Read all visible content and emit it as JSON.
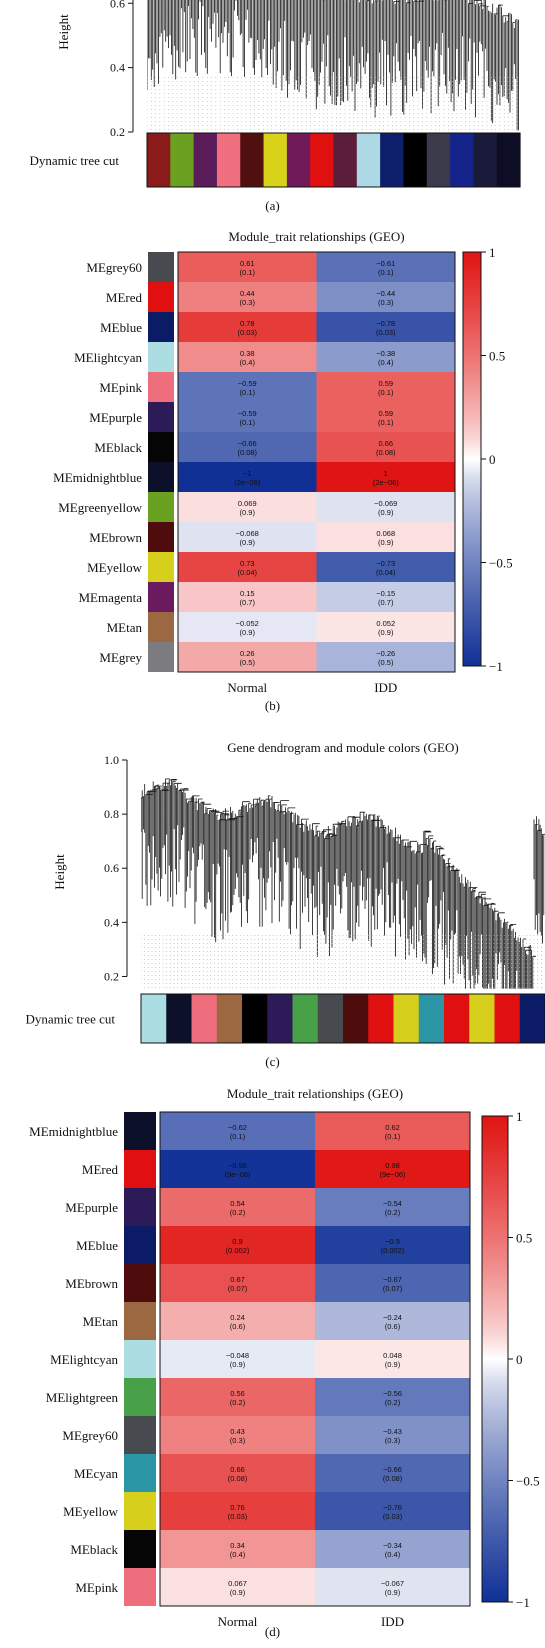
{
  "panel_labels": [
    "(a)",
    "(b)",
    "(c)",
    "(d)"
  ],
  "chart_data": [
    {
      "type": "dendrogram",
      "panel": "(a)",
      "title": "",
      "ylabel": "Height",
      "ylim": [
        0.2,
        0.75
      ],
      "yticks": [
        "0.2",
        "0.4",
        "0.6"
      ],
      "color_bar_label": "Dynamic tree cut",
      "module_colors": [
        "#8B1A1A",
        "#6aa120",
        "#5a1d5a",
        "#f07080",
        "#501010",
        "#d8d21a",
        "#701a5a",
        "#e01010",
        "#5a1d3a",
        "#add8e6",
        "#0d1f6a",
        "#000000",
        "#3a3a4a",
        "#14248a",
        "#1a1a3a",
        "#0d0d25"
      ],
      "grid": false
    },
    {
      "type": "heatmap",
      "panel": "(b)",
      "title": "Module_trait relationships (GEO)",
      "columns": [
        "Normal",
        "IDD"
      ],
      "rows": [
        {
          "label": "MEgrey60",
          "color": "#474a4f",
          "cells": [
            {
              "r": "0.61",
              "p": "(0.1)",
              "v": 0.61
            },
            {
              "r": "−0.61",
              "p": "(0.1)",
              "v": -0.61
            }
          ]
        },
        {
          "label": "MEred",
          "color": "#e01010",
          "cells": [
            {
              "r": "0.44",
              "p": "(0.3)",
              "v": 0.44
            },
            {
              "r": "−0.44",
              "p": "(0.3)",
              "v": -0.44
            }
          ]
        },
        {
          "label": "MEblue",
          "color": "#0c1b66",
          "cells": [
            {
              "r": "0.78",
              "p": "(0.03)",
              "v": 0.78
            },
            {
              "r": "−0.78",
              "p": "(0.03)",
              "v": -0.78
            }
          ]
        },
        {
          "label": "MElightcyan",
          "color": "#abdde3",
          "cells": [
            {
              "r": "0.38",
              "p": "(0.4)",
              "v": 0.38
            },
            {
              "r": "−0.38",
              "p": "(0.4)",
              "v": -0.38
            }
          ]
        },
        {
          "label": "MEpink",
          "color": "#ef6e7e",
          "cells": [
            {
              "r": "−0.59",
              "p": "(0.1)",
              "v": -0.59
            },
            {
              "r": "0.59",
              "p": "(0.1)",
              "v": 0.59
            }
          ]
        },
        {
          "label": "MEpurple",
          "color": "#2d1a58",
          "cells": [
            {
              "r": "−0.59",
              "p": "(0.1)",
              "v": -0.59
            },
            {
              "r": "0.59",
              "p": "(0.1)",
              "v": 0.59
            }
          ]
        },
        {
          "label": "MEblack",
          "color": "#050505",
          "cells": [
            {
              "r": "−0.66",
              "p": "(0.08)",
              "v": -0.66
            },
            {
              "r": "0.66",
              "p": "(0.08)",
              "v": 0.66
            }
          ]
        },
        {
          "label": "MEmidnightblue",
          "color": "#0c1028",
          "cells": [
            {
              "r": "−1",
              "p": "(2e−06)",
              "v": -1
            },
            {
              "r": "1",
              "p": "(2e−06)",
              "v": 1
            }
          ]
        },
        {
          "label": "MEgreenyellow",
          "color": "#6aa120",
          "cells": [
            {
              "r": "0.069",
              "p": "(0.9)",
              "v": 0.069
            },
            {
              "r": "−0.069",
              "p": "(0.9)",
              "v": -0.069
            }
          ]
        },
        {
          "label": "MEbrown",
          "color": "#4e0c0c",
          "cells": [
            {
              "r": "−0.068",
              "p": "(0.9)",
              "v": -0.068
            },
            {
              "r": "0.068",
              "p": "(0.9)",
              "v": 0.068
            }
          ]
        },
        {
          "label": "MEyellow",
          "color": "#d6d01c",
          "cells": [
            {
              "r": "0.73",
              "p": "(0.04)",
              "v": 0.73
            },
            {
              "r": "−0.73",
              "p": "(0.04)",
              "v": -0.73
            }
          ]
        },
        {
          "label": "MEmagenta",
          "color": "#6b1a60",
          "cells": [
            {
              "r": "0.15",
              "p": "(0.7)",
              "v": 0.15
            },
            {
              "r": "−0.15",
              "p": "(0.7)",
              "v": -0.15
            }
          ]
        },
        {
          "label": "MEtan",
          "color": "#9b6842",
          "cells": [
            {
              "r": "−0.052",
              "p": "(0.9)",
              "v": -0.052
            },
            {
              "r": "0.052",
              "p": "(0.9)",
              "v": 0.052
            }
          ]
        },
        {
          "label": "MEgrey",
          "color": "#7c7c80",
          "cells": [
            {
              "r": "0.26",
              "p": "(0.5)",
              "v": 0.26
            },
            {
              "r": "−0.26",
              "p": "(0.5)",
              "v": -0.26
            }
          ]
        }
      ],
      "colorscale": {
        "min": -1,
        "max": 1,
        "ticks": [
          "1",
          "0.5",
          "0",
          "−0.5",
          "−1"
        ],
        "tick_values": [
          1,
          0.5,
          0,
          -0.5,
          -1
        ]
      }
    },
    {
      "type": "dendrogram",
      "panel": "(c)",
      "title": "Gene dendrogram and module colors (GEO)",
      "ylabel": "Height",
      "ylim": [
        0.15,
        1.0
      ],
      "yticks": [
        "0.2",
        "0.4",
        "0.6",
        "0.8",
        "1.0"
      ],
      "color_bar_label": "Dynamic tree cut",
      "module_colors": [
        "#abdde3",
        "#0c1028",
        "#ef6e7e",
        "#9b6842",
        "#000000",
        "#2d1a58",
        "#48a048",
        "#474a4f",
        "#4e0c0c",
        "#e01010",
        "#d6d01c",
        "#2a96a6",
        "#e01010",
        "#d6d01c",
        "#e01010",
        "#0c1b66"
      ],
      "grid": false
    },
    {
      "type": "heatmap",
      "panel": "(d)",
      "title": "Module_trait relationships (GEO)",
      "columns": [
        "Normal",
        "IDD"
      ],
      "rows": [
        {
          "label": "MEmidnightblue",
          "color": "#0c1028",
          "cells": [
            {
              "r": "−0.62",
              "p": "(0.1)",
              "v": -0.62
            },
            {
              "r": "0.62",
              "p": "(0.1)",
              "v": 0.62
            }
          ]
        },
        {
          "label": "MEred",
          "color": "#e01010",
          "cells": [
            {
              "r": "−0.98",
              "p": "(9e−06)",
              "v": -0.98
            },
            {
              "r": "0.98",
              "p": "(9e−06)",
              "v": 0.98
            }
          ]
        },
        {
          "label": "MEpurple",
          "color": "#2d1a58",
          "cells": [
            {
              "r": "0.54",
              "p": "(0.2)",
              "v": 0.54
            },
            {
              "r": "−0.54",
              "p": "(0.2)",
              "v": -0.54
            }
          ]
        },
        {
          "label": "MEblue",
          "color": "#0c1b66",
          "cells": [
            {
              "r": "0.9",
              "p": "(0.002)",
              "v": 0.9
            },
            {
              "r": "−0.9",
              "p": "(0.002)",
              "v": -0.9
            }
          ]
        },
        {
          "label": "MEbrown",
          "color": "#4e0c0c",
          "cells": [
            {
              "r": "0.67",
              "p": "(0.07)",
              "v": 0.67
            },
            {
              "r": "−0.67",
              "p": "(0.07)",
              "v": -0.67
            }
          ]
        },
        {
          "label": "MEtan",
          "color": "#9b6842",
          "cells": [
            {
              "r": "0.24",
              "p": "(0.6)",
              "v": 0.24
            },
            {
              "r": "−0.24",
              "p": "(0.6)",
              "v": -0.24
            }
          ]
        },
        {
          "label": "MElightcyan",
          "color": "#abdde3",
          "cells": [
            {
              "r": "−0.048",
              "p": "(0.9)",
              "v": -0.048
            },
            {
              "r": "0.048",
              "p": "(0.9)",
              "v": 0.048
            }
          ]
        },
        {
          "label": "MElightgreen",
          "color": "#48a048",
          "cells": [
            {
              "r": "0.56",
              "p": "(0.2)",
              "v": 0.56
            },
            {
              "r": "−0.56",
              "p": "(0.2)",
              "v": -0.56
            }
          ]
        },
        {
          "label": "MEgrey60",
          "color": "#474a4f",
          "cells": [
            {
              "r": "0.43",
              "p": "(0.3)",
              "v": 0.43
            },
            {
              "r": "−0.43",
              "p": "(0.3)",
              "v": -0.43
            }
          ]
        },
        {
          "label": "MEcyan",
          "color": "#2a96a6",
          "cells": [
            {
              "r": "0.66",
              "p": "(0.08)",
              "v": 0.66
            },
            {
              "r": "−0.66",
              "p": "(0.08)",
              "v": -0.66
            }
          ]
        },
        {
          "label": "MEyellow",
          "color": "#d6d01c",
          "cells": [
            {
              "r": "0.76",
              "p": "(0.03)",
              "v": 0.76
            },
            {
              "r": "−0.76",
              "p": "(0.03)",
              "v": -0.76
            }
          ]
        },
        {
          "label": "MEblack",
          "color": "#050505",
          "cells": [
            {
              "r": "0.34",
              "p": "(0.4)",
              "v": 0.34
            },
            {
              "r": "−0.34",
              "p": "(0.4)",
              "v": -0.34
            }
          ]
        },
        {
          "label": "MEpink",
          "color": "#ef6e7e",
          "cells": [
            {
              "r": "0.067",
              "p": "(0.9)",
              "v": 0.067
            },
            {
              "r": "−0.067",
              "p": "(0.9)",
              "v": -0.067
            }
          ]
        }
      ],
      "colorscale": {
        "min": -1,
        "max": 1,
        "ticks": [
          "1",
          "0.5",
          "0",
          "−0.5",
          "−1"
        ],
        "tick_values": [
          1,
          0.5,
          0,
          -0.5,
          -1
        ]
      }
    }
  ]
}
